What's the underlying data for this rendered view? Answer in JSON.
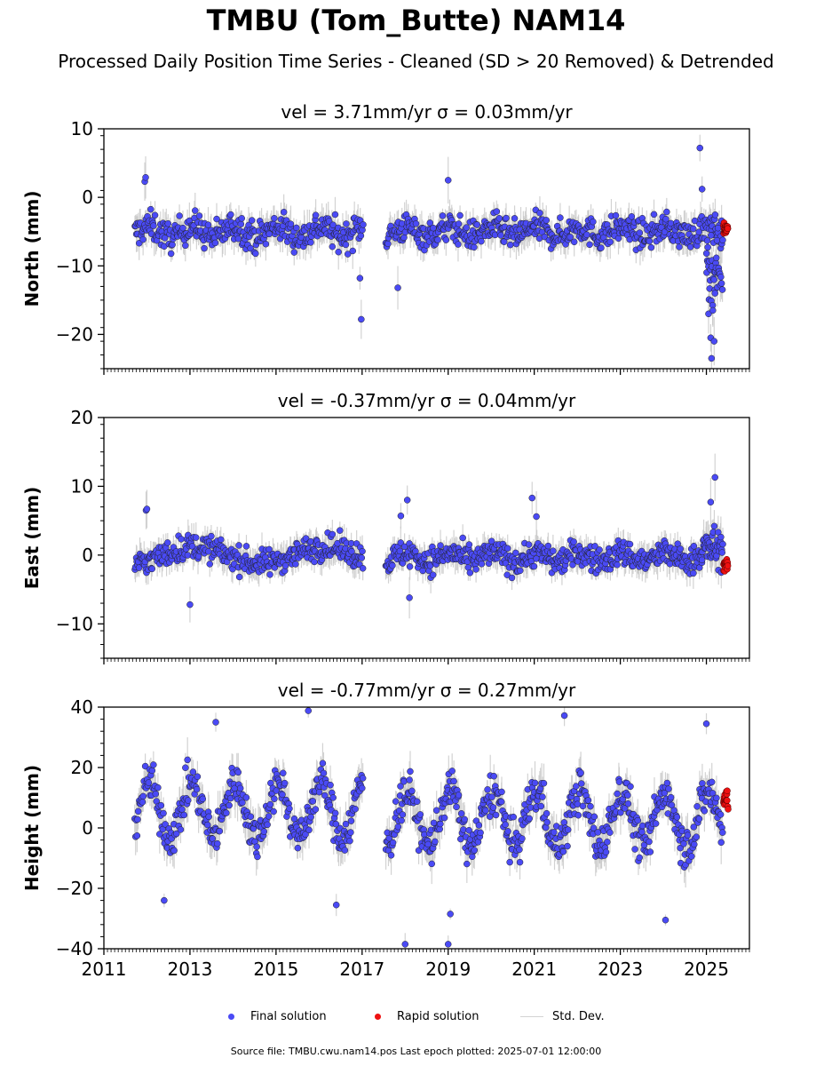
{
  "title": "TMBU (Tom_Butte) NAM14",
  "subtitle": "Processed Daily Position Time Series - Cleaned (SD > 20 Removed) & Detrended",
  "legend": {
    "final": "Final solution",
    "rapid": "Rapid solution",
    "std": "Std. Dev."
  },
  "footer": "Source file: TMBU.cwu.nam14.pos  Last epoch plotted: 2025-07-01 12:00:00",
  "colors": {
    "final": "#4a4af5",
    "rapid": "#ee1111",
    "std": "#c8c8c8",
    "edge": "#222222"
  },
  "chart_data": [
    {
      "type": "scatter",
      "component": "north",
      "title": "vel = 3.71mm/yr   σ = 0.03mm/yr",
      "ylabel": "North (mm)",
      "xlim": [
        2011.0,
        2026.0
      ],
      "ylim": [
        -25,
        10
      ],
      "yticks": [
        10,
        0,
        -10,
        -20
      ],
      "ytick_labels": [
        "10",
        "0",
        "−10",
        "−20"
      ],
      "series": [
        {
          "name": "Final solution",
          "role": "final",
          "segments": [
            {
              "x_start": 2011.72,
              "x_end": 2017.02,
              "mean": -5.0,
              "amp": 0.8,
              "period": 1.0,
              "noise": 2.0,
              "n": 330,
              "sd": 1.8
            },
            {
              "x_start": 2017.55,
              "x_end": 2025.35,
              "mean": -5.0,
              "amp": 0.6,
              "period": 1.0,
              "noise": 1.9,
              "n": 480,
              "sd": 1.7
            },
            {
              "x_start": 2025.0,
              "x_end": 2025.38,
              "mean": -10.0,
              "amp": 0,
              "period": 1.0,
              "noise": 4.5,
              "n": 40,
              "sd": 2.0
            }
          ],
          "outliers": [
            [
              2011.95,
              2.3
            ],
            [
              2011.97,
              2.9
            ],
            [
              2016.98,
              -17.8
            ],
            [
              2016.95,
              -11.8
            ],
            [
              2017.83,
              -13.2
            ],
            [
              2019.0,
              2.5
            ],
            [
              2024.85,
              7.2
            ],
            [
              2024.9,
              1.2
            ],
            [
              2025.05,
              -17.0
            ],
            [
              2025.1,
              -20.5
            ],
            [
              2025.12,
              -23.5
            ],
            [
              2025.18,
              -21.0
            ],
            [
              2025.2,
              -14.0
            ],
            [
              2025.15,
              -16.5
            ]
          ]
        },
        {
          "name": "Rapid solution",
          "role": "rapid",
          "segments": [
            {
              "x_start": 2025.4,
              "x_end": 2025.5,
              "mean": -4.5,
              "amp": 0,
              "period": 1.0,
              "noise": 0.8,
              "n": 20,
              "sd": 0
            }
          ],
          "outliers": []
        }
      ]
    },
    {
      "type": "scatter",
      "component": "east",
      "title": "vel = -0.37mm/yr   σ = 0.04mm/yr",
      "ylabel": "East (mm)",
      "xlim": [
        2011.0,
        2026.0
      ],
      "ylim": [
        -15,
        20
      ],
      "yticks": [
        20,
        10,
        0,
        -10
      ],
      "ytick_labels": [
        "20",
        "10",
        "0",
        "−10"
      ],
      "series": [
        {
          "name": "Final solution",
          "role": "final",
          "segments": [
            {
              "x_start": 2011.72,
              "x_end": 2017.02,
              "mean": 0.0,
              "amp": 1.2,
              "period": 3.0,
              "noise": 1.7,
              "n": 330,
              "sd": 1.6
            },
            {
              "x_start": 2017.55,
              "x_end": 2024.9,
              "mean": -0.3,
              "amp": 0.6,
              "period": 1.0,
              "noise": 1.8,
              "n": 470,
              "sd": 1.6
            },
            {
              "x_start": 2024.9,
              "x_end": 2025.38,
              "mean": 1.0,
              "amp": 0,
              "period": 1.0,
              "noise": 2.6,
              "n": 45,
              "sd": 2.0
            }
          ],
          "outliers": [
            [
              2011.98,
              6.5
            ],
            [
              2012.0,
              6.7
            ],
            [
              2013.0,
              -7.2
            ],
            [
              2017.9,
              5.7
            ],
            [
              2018.05,
              8.0
            ],
            [
              2020.95,
              8.3
            ],
            [
              2021.05,
              5.6
            ],
            [
              2025.2,
              11.3
            ],
            [
              2025.1,
              7.7
            ],
            [
              2018.1,
              -6.2
            ]
          ]
        },
        {
          "name": "Rapid solution",
          "role": "rapid",
          "segments": [
            {
              "x_start": 2025.4,
              "x_end": 2025.5,
              "mean": -1.5,
              "amp": 0,
              "period": 1.0,
              "noise": 0.7,
              "n": 20,
              "sd": 0
            }
          ],
          "outliers": []
        }
      ]
    },
    {
      "type": "scatter",
      "component": "height",
      "title": "vel = -0.77mm/yr   σ = 0.27mm/yr",
      "ylabel": "Height (mm)",
      "xlim": [
        2011.0,
        2026.0
      ],
      "ylim": [
        -40,
        40
      ],
      "yticks": [
        40,
        20,
        0,
        -20,
        -40
      ],
      "ytick_labels": [
        "40",
        "20",
        "0",
        "−20",
        "−40"
      ],
      "xticks": [
        2011,
        2013,
        2015,
        2017,
        2019,
        2021,
        2023,
        2025
      ],
      "xtick_labels": [
        "2011",
        "2013",
        "2015",
        "2017",
        "2019",
        "2021",
        "2023",
        "2025"
      ],
      "series": [
        {
          "name": "Final solution",
          "role": "final",
          "segments": [
            {
              "x_start": 2011.72,
              "x_end": 2017.02,
              "mean": 6.0,
              "amp": 9.0,
              "period": 1.0,
              "noise": 6.0,
              "n": 330,
              "sd": 5.0
            },
            {
              "x_start": 2017.55,
              "x_end": 2025.38,
              "mean": 3.0,
              "amp": 9.0,
              "period": 1.0,
              "noise": 6.5,
              "n": 500,
              "sd": 5.0
            }
          ],
          "outliers": [
            [
              2015.75,
              38.8
            ],
            [
              2013.6,
              35.0
            ],
            [
              2021.7,
              37.2
            ],
            [
              2018.0,
              -38.5
            ],
            [
              2019.0,
              -38.5
            ],
            [
              2024.05,
              -30.5
            ],
            [
              2025.0,
              34.5
            ],
            [
              2016.4,
              -25.5
            ],
            [
              2012.4,
              -24.0
            ],
            [
              2019.05,
              -28.5
            ]
          ]
        },
        {
          "name": "Rapid solution",
          "role": "rapid",
          "segments": [
            {
              "x_start": 2025.4,
              "x_end": 2025.5,
              "mean": 9.0,
              "amp": 0,
              "period": 1.0,
              "noise": 4.0,
              "n": 20,
              "sd": 0
            }
          ],
          "outliers": []
        }
      ]
    }
  ]
}
